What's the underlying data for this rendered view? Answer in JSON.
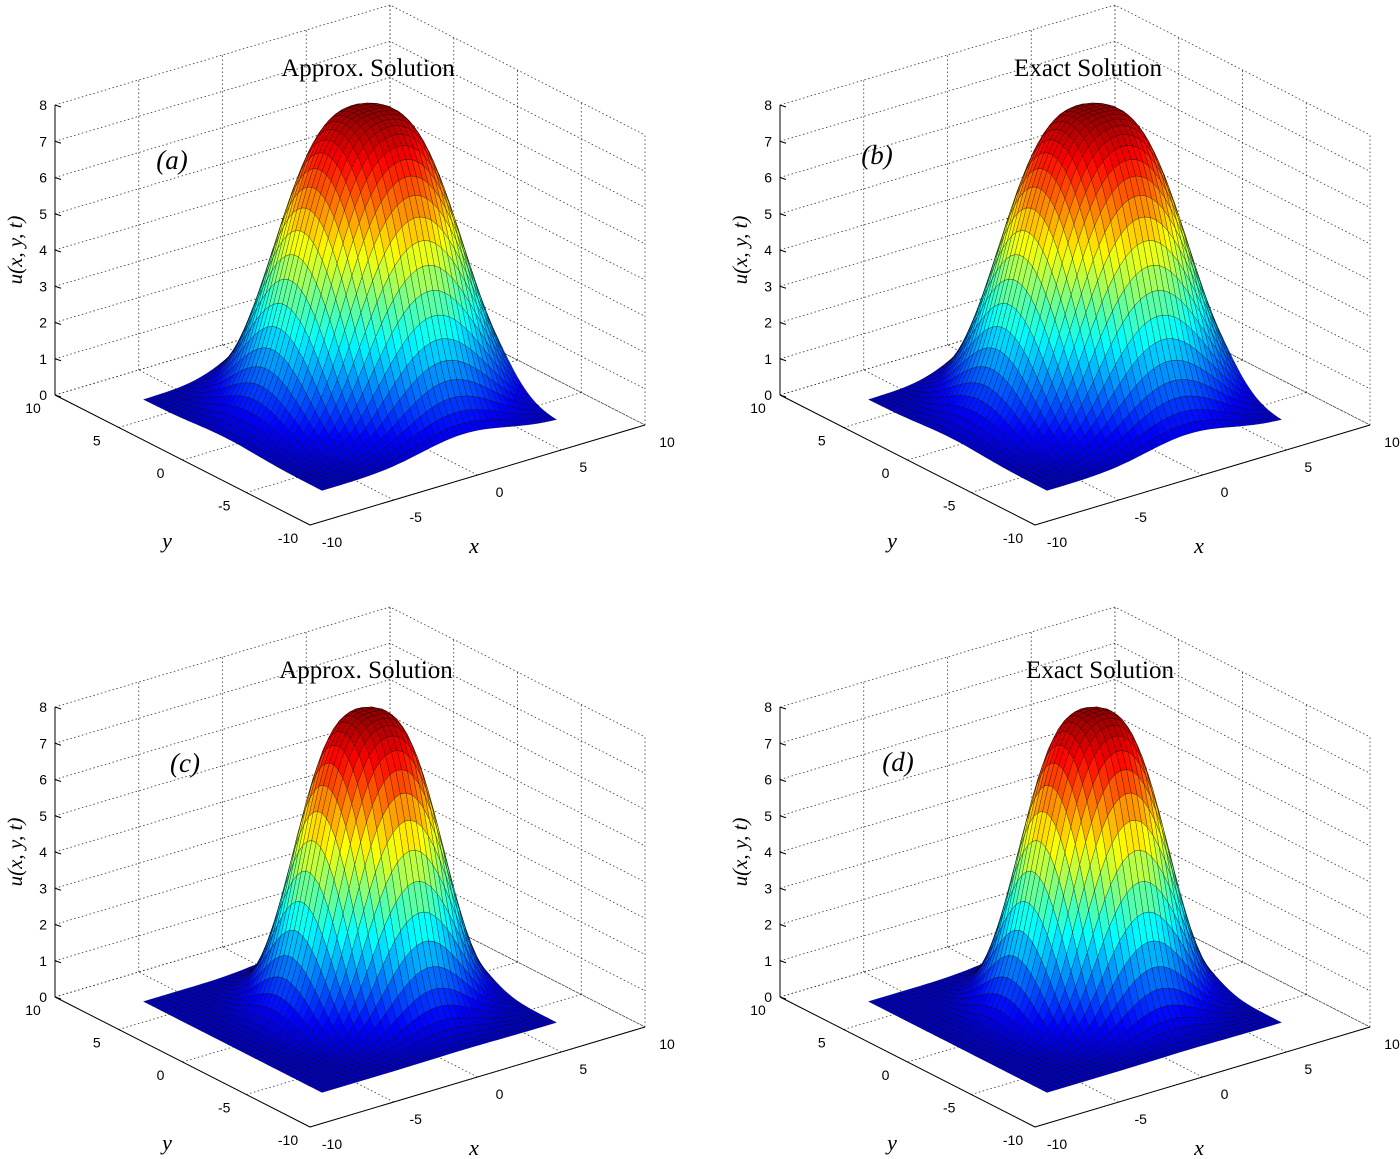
{
  "figure": {
    "colormap": "jet",
    "grid": true
  },
  "chart_data": [
    {
      "type": "surface",
      "panel_label": "(a)",
      "title": "Approx. Solution",
      "xlabel": "x",
      "ylabel": "y",
      "zlabel": "u(x, y, t)",
      "xlim": [
        -10,
        10
      ],
      "ylim": [
        -10,
        10
      ],
      "zlim": [
        0,
        8
      ],
      "xticks": [
        "-10",
        "-5",
        "0",
        "5",
        "10"
      ],
      "yticks": [
        "-10",
        "-5",
        "0",
        "5",
        "10"
      ],
      "zticks": [
        "0",
        "1",
        "2",
        "3",
        "4",
        "5",
        "6",
        "7",
        "8"
      ],
      "peak_value": 8
    },
    {
      "type": "surface",
      "panel_label": "(b)",
      "title": "Exact Solution",
      "xlabel": "x",
      "ylabel": "y",
      "zlabel": "u(x, y, t)",
      "xlim": [
        -10,
        10
      ],
      "ylim": [
        -10,
        10
      ],
      "zlim": [
        0,
        8
      ],
      "xticks": [
        "-10",
        "-5",
        "0",
        "5",
        "10"
      ],
      "yticks": [
        "-10",
        "-5",
        "0",
        "5",
        "10"
      ],
      "zticks": [
        "0",
        "1",
        "2",
        "3",
        "4",
        "5",
        "6",
        "7",
        "8"
      ],
      "peak_value": 8
    },
    {
      "type": "surface",
      "panel_label": "(c)",
      "title": "Approx. Solution",
      "xlabel": "x",
      "ylabel": "y",
      "zlabel": "u(x, y, t)",
      "xlim": [
        -10,
        10
      ],
      "ylim": [
        -10,
        10
      ],
      "zlim": [
        0,
        8
      ],
      "xticks": [
        "-10",
        "-5",
        "0",
        "5",
        "10"
      ],
      "yticks": [
        "-10",
        "-5",
        "0",
        "5",
        "10"
      ],
      "zticks": [
        "0",
        "1",
        "2",
        "3",
        "4",
        "5",
        "6",
        "7",
        "8"
      ],
      "peak_value": 8
    },
    {
      "type": "surface",
      "panel_label": "(d)",
      "title": "Exact Solution",
      "xlabel": "x",
      "ylabel": "y",
      "zlabel": "u(x, y, t)",
      "xlim": [
        -10,
        10
      ],
      "ylim": [
        -10,
        10
      ],
      "zlim": [
        0,
        8
      ],
      "xticks": [
        "-10",
        "-5",
        "0",
        "5",
        "10"
      ],
      "yticks": [
        "-10",
        "-5",
        "0",
        "5",
        "10"
      ],
      "zticks": [
        "0",
        "1",
        "2",
        "3",
        "4",
        "5",
        "6",
        "7",
        "8"
      ],
      "peak_value": 8
    }
  ]
}
